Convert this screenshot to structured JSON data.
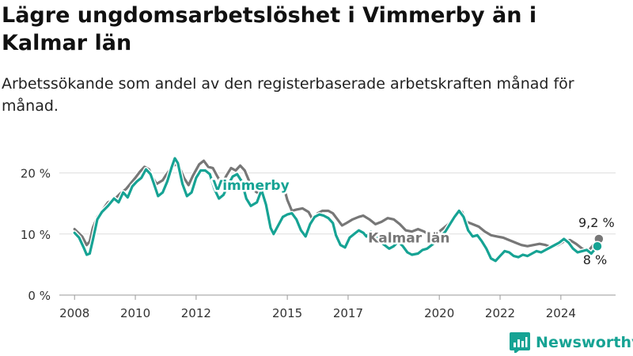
{
  "title": "Lägre ungdomsarbetslöshet i Vimmerby än i Kalmar län",
  "subtitle": "Arbetssökande som andel av den registerbaserade arbetskraften månad för månad.",
  "brand": {
    "name": "Newsworthy"
  },
  "colors": {
    "vimmerby": "#16a394",
    "kalmar": "#777777",
    "grid": "#dddddd",
    "text": "#333333",
    "brand": "#16a394"
  },
  "chart_data": {
    "type": "line",
    "xlim": [
      2007.5,
      2025.8
    ],
    "ylim": [
      0,
      25
    ],
    "grid": true,
    "yticks": [
      {
        "value": 0,
        "label": "0 %"
      },
      {
        "value": 10,
        "label": "10 %"
      },
      {
        "value": 20,
        "label": "20 %"
      }
    ],
    "xticks": [
      {
        "value": 2008,
        "label": "2008"
      },
      {
        "value": 2010,
        "label": "2010"
      },
      {
        "value": 2012,
        "label": "2012"
      },
      {
        "value": 2015,
        "label": "2015"
      },
      {
        "value": 2017,
        "label": "2017"
      },
      {
        "value": 2020,
        "label": "2020"
      },
      {
        "value": 2022,
        "label": "2022"
      },
      {
        "value": 2024,
        "label": "2024"
      }
    ],
    "series": [
      {
        "name": "Kalmar län",
        "color": "#777777",
        "end_label": "9,2 %",
        "points": [
          [
            2008.0,
            10.8
          ],
          [
            2008.25,
            9.6
          ],
          [
            2008.4,
            8.2
          ],
          [
            2008.5,
            8.8
          ],
          [
            2008.6,
            11
          ],
          [
            2008.75,
            12.8
          ],
          [
            2008.9,
            13.8
          ],
          [
            2009.1,
            15.2
          ],
          [
            2009.3,
            15.6
          ],
          [
            2009.5,
            16.6
          ],
          [
            2009.7,
            17.4
          ],
          [
            2009.85,
            18.3
          ],
          [
            2010.0,
            19.2
          ],
          [
            2010.15,
            20.2
          ],
          [
            2010.3,
            21
          ],
          [
            2010.45,
            20.6
          ],
          [
            2010.55,
            19.4
          ],
          [
            2010.7,
            18.2
          ],
          [
            2010.9,
            18.8
          ],
          [
            2011.0,
            19.6
          ],
          [
            2011.15,
            20.6
          ],
          [
            2011.3,
            21.4
          ],
          [
            2011.45,
            21
          ],
          [
            2011.6,
            19.2
          ],
          [
            2011.75,
            18
          ],
          [
            2011.9,
            19.6
          ],
          [
            2012.1,
            21.4
          ],
          [
            2012.25,
            22
          ],
          [
            2012.4,
            21
          ],
          [
            2012.55,
            20.8
          ],
          [
            2012.7,
            19.4
          ],
          [
            2012.85,
            18.2
          ],
          [
            2013.0,
            19.6
          ],
          [
            2013.15,
            20.8
          ],
          [
            2013.3,
            20.4
          ],
          [
            2013.45,
            21.2
          ],
          [
            2013.6,
            20.4
          ],
          [
            2013.75,
            18.6
          ],
          [
            2013.9,
            17.2
          ],
          [
            2014.0,
            16.8
          ],
          [
            2014.2,
            17.4
          ],
          [
            2014.35,
            18.2
          ],
          [
            2014.55,
            18.4
          ],
          [
            2014.75,
            18
          ],
          [
            2014.9,
            17.4
          ],
          [
            2015.0,
            15.6
          ],
          [
            2015.15,
            13.8
          ],
          [
            2015.3,
            14
          ],
          [
            2015.5,
            14.2
          ],
          [
            2015.7,
            13.6
          ],
          [
            2015.85,
            12.2
          ],
          [
            2016.0,
            13.4
          ],
          [
            2016.15,
            13.8
          ],
          [
            2016.35,
            13.8
          ],
          [
            2016.5,
            13.4
          ],
          [
            2016.65,
            12.4
          ],
          [
            2016.8,
            11.4
          ],
          [
            2016.95,
            11.8
          ],
          [
            2017.15,
            12.4
          ],
          [
            2017.35,
            12.8
          ],
          [
            2017.5,
            13
          ],
          [
            2017.7,
            12.4
          ],
          [
            2017.9,
            11.6
          ],
          [
            2018.1,
            12
          ],
          [
            2018.3,
            12.6
          ],
          [
            2018.5,
            12.4
          ],
          [
            2018.7,
            11.6
          ],
          [
            2018.9,
            10.6
          ],
          [
            2019.1,
            10.4
          ],
          [
            2019.3,
            10.8
          ],
          [
            2019.5,
            10.4
          ],
          [
            2019.7,
            9.8
          ],
          [
            2019.9,
            10
          ],
          [
            2020.1,
            10.8
          ],
          [
            2020.3,
            11.6
          ],
          [
            2020.45,
            12.6
          ],
          [
            2020.6,
            13.2
          ],
          [
            2020.75,
            13.6
          ],
          [
            2020.9,
            12
          ],
          [
            2021.1,
            11.6
          ],
          [
            2021.3,
            11.2
          ],
          [
            2021.5,
            10.4
          ],
          [
            2021.7,
            9.8
          ],
          [
            2021.9,
            9.6
          ],
          [
            2022.1,
            9.4
          ],
          [
            2022.3,
            9
          ],
          [
            2022.5,
            8.6
          ],
          [
            2022.7,
            8.2
          ],
          [
            2022.9,
            8
          ],
          [
            2023.1,
            8.2
          ],
          [
            2023.3,
            8.4
          ],
          [
            2023.5,
            8.2
          ],
          [
            2023.7,
            7.8
          ],
          [
            2023.9,
            8.2
          ],
          [
            2024.1,
            8.8
          ],
          [
            2024.3,
            9
          ],
          [
            2024.5,
            8.4
          ],
          [
            2024.7,
            7.6
          ],
          [
            2024.9,
            7.2
          ],
          [
            2025.1,
            8.4
          ],
          [
            2025.25,
            9.2
          ]
        ]
      },
      {
        "name": "Vimmerby",
        "color": "#16a394",
        "end_label": "8 %",
        "points": [
          [
            2008.0,
            10.2
          ],
          [
            2008.15,
            9.4
          ],
          [
            2008.3,
            7.8
          ],
          [
            2008.4,
            6.6
          ],
          [
            2008.5,
            6.8
          ],
          [
            2008.6,
            9
          ],
          [
            2008.75,
            12.4
          ],
          [
            2008.9,
            13.6
          ],
          [
            2009.1,
            14.6
          ],
          [
            2009.3,
            15.8
          ],
          [
            2009.45,
            15.2
          ],
          [
            2009.6,
            16.8
          ],
          [
            2009.75,
            16
          ],
          [
            2009.9,
            17.8
          ],
          [
            2010.05,
            18.6
          ],
          [
            2010.2,
            19.2
          ],
          [
            2010.35,
            20.6
          ],
          [
            2010.5,
            19.8
          ],
          [
            2010.6,
            18.4
          ],
          [
            2010.75,
            16.2
          ],
          [
            2010.9,
            16.8
          ],
          [
            2011.05,
            18.6
          ],
          [
            2011.2,
            21
          ],
          [
            2011.3,
            22.4
          ],
          [
            2011.4,
            21.6
          ],
          [
            2011.55,
            18.2
          ],
          [
            2011.7,
            16.2
          ],
          [
            2011.85,
            16.8
          ],
          [
            2012.0,
            19.2
          ],
          [
            2012.15,
            20.4
          ],
          [
            2012.3,
            20.4
          ],
          [
            2012.45,
            19.8
          ],
          [
            2012.6,
            17.4
          ],
          [
            2012.75,
            15.8
          ],
          [
            2012.9,
            16.4
          ],
          [
            2013.05,
            18
          ],
          [
            2013.2,
            19.4
          ],
          [
            2013.35,
            19.8
          ],
          [
            2013.5,
            18.6
          ],
          [
            2013.65,
            15.8
          ],
          [
            2013.8,
            14.6
          ],
          [
            2014.0,
            15.2
          ],
          [
            2014.15,
            17.2
          ],
          [
            2014.3,
            14.8
          ],
          [
            2014.45,
            11
          ],
          [
            2014.55,
            10
          ],
          [
            2014.7,
            11.4
          ],
          [
            2014.85,
            12.8
          ],
          [
            2015.0,
            13.2
          ],
          [
            2015.15,
            13.4
          ],
          [
            2015.3,
            12.4
          ],
          [
            2015.45,
            10.6
          ],
          [
            2015.6,
            9.6
          ],
          [
            2015.75,
            11.6
          ],
          [
            2015.9,
            12.8
          ],
          [
            2016.05,
            13.2
          ],
          [
            2016.2,
            13
          ],
          [
            2016.35,
            12.6
          ],
          [
            2016.5,
            11.8
          ],
          [
            2016.6,
            9.8
          ],
          [
            2016.75,
            8.2
          ],
          [
            2016.9,
            7.8
          ],
          [
            2017.05,
            9.4
          ],
          [
            2017.2,
            10
          ],
          [
            2017.35,
            10.6
          ],
          [
            2017.5,
            10.2
          ],
          [
            2017.6,
            9.6
          ],
          [
            2017.75,
            10.4
          ],
          [
            2017.9,
            9.6
          ],
          [
            2018.05,
            8.8
          ],
          [
            2018.2,
            8.2
          ],
          [
            2018.35,
            7.6
          ],
          [
            2018.5,
            8
          ],
          [
            2018.65,
            8.8
          ],
          [
            2018.8,
            8
          ],
          [
            2018.95,
            7
          ],
          [
            2019.1,
            6.6
          ],
          [
            2019.3,
            6.8
          ],
          [
            2019.45,
            7.4
          ],
          [
            2019.6,
            7.6
          ],
          [
            2019.75,
            8.2
          ],
          [
            2019.9,
            8.8
          ],
          [
            2020.05,
            9.6
          ],
          [
            2020.2,
            10.4
          ],
          [
            2020.35,
            11.6
          ],
          [
            2020.5,
            12.8
          ],
          [
            2020.65,
            13.8
          ],
          [
            2020.8,
            12.8
          ],
          [
            2020.95,
            10.6
          ],
          [
            2021.1,
            9.6
          ],
          [
            2021.25,
            9.8
          ],
          [
            2021.4,
            8.8
          ],
          [
            2021.55,
            7.6
          ],
          [
            2021.7,
            6
          ],
          [
            2021.85,
            5.6
          ],
          [
            2022.0,
            6.4
          ],
          [
            2022.15,
            7.2
          ],
          [
            2022.3,
            7
          ],
          [
            2022.45,
            6.4
          ],
          [
            2022.6,
            6.2
          ],
          [
            2022.75,
            6.6
          ],
          [
            2022.9,
            6.4
          ],
          [
            2023.05,
            6.8
          ],
          [
            2023.2,
            7.2
          ],
          [
            2023.35,
            7
          ],
          [
            2023.5,
            7.4
          ],
          [
            2023.65,
            7.8
          ],
          [
            2023.8,
            8.2
          ],
          [
            2023.95,
            8.6
          ],
          [
            2024.1,
            9.2
          ],
          [
            2024.25,
            8.6
          ],
          [
            2024.4,
            7.6
          ],
          [
            2024.55,
            7
          ],
          [
            2024.7,
            7.2
          ],
          [
            2024.85,
            7.4
          ],
          [
            2025.0,
            6.8
          ],
          [
            2025.1,
            7.4
          ],
          [
            2025.2,
            8
          ]
        ]
      }
    ],
    "annotations": [
      {
        "text": "Vimmerby",
        "series": "Vimmerby"
      },
      {
        "text": "Kalmar län",
        "series": "Kalmar län"
      }
    ]
  }
}
